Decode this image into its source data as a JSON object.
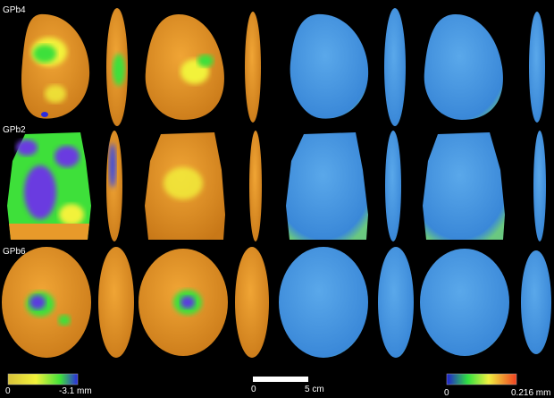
{
  "figure": {
    "rows": [
      {
        "label": "GPb4"
      },
      {
        "label": "GPb2"
      },
      {
        "label": "GPb6"
      }
    ],
    "left_colorbar": {
      "min_label": "0",
      "max_label": "-3.1 mm",
      "colors": [
        "#d8c23a",
        "#f2f23a",
        "#3ee03a",
        "#2a2ae0"
      ]
    },
    "scale_bar": {
      "start_label": "0",
      "end_label": "5 cm"
    },
    "right_colorbar": {
      "min_label": "0",
      "max_label": "0.216 mm",
      "colors": [
        "#2020d0",
        "#30e040",
        "#f0f040",
        "#f04020"
      ]
    },
    "colors": {
      "deviation_base": "#e89a2a",
      "roughness_base": "#4a9ae0",
      "background": "#000000"
    }
  }
}
